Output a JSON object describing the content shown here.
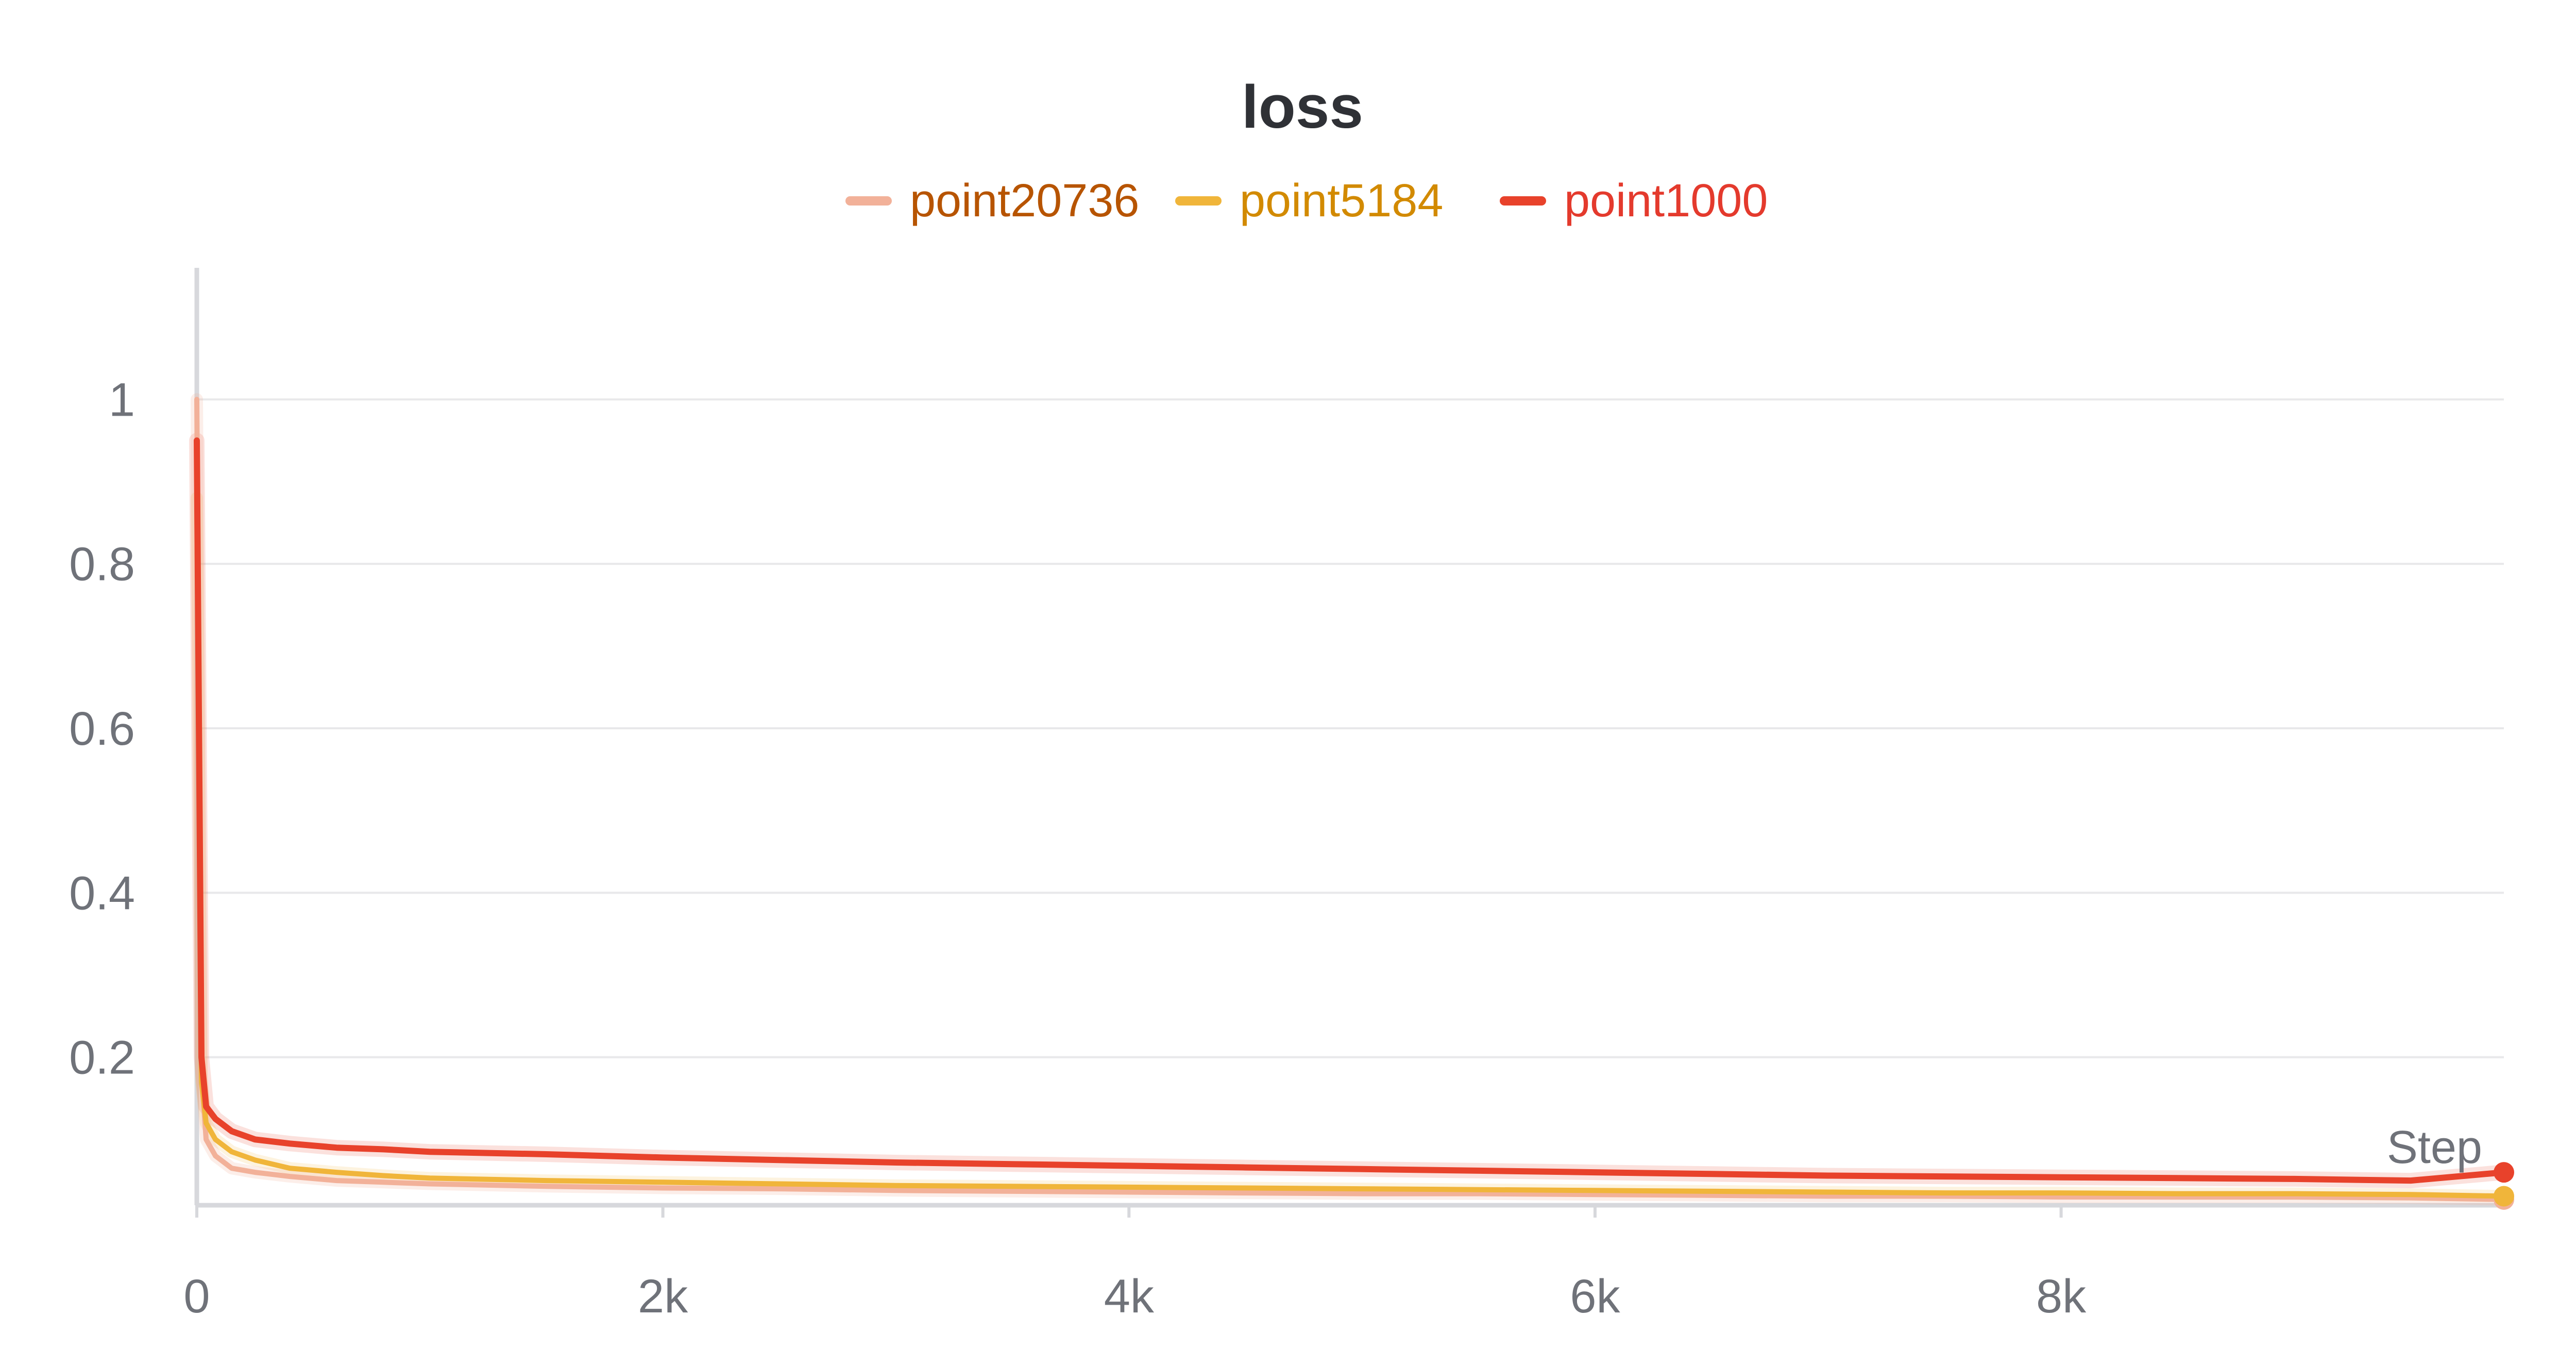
{
  "chart_data": {
    "type": "line",
    "title": "loss",
    "xlabel": "Step",
    "ylabel": "",
    "xlim": [
      0,
      9900
    ],
    "ylim": [
      0.02,
      1.16
    ],
    "x_ticks": [
      {
        "value": 0,
        "label": "0"
      },
      {
        "value": 2000,
        "label": "2k"
      },
      {
        "value": 4000,
        "label": "4k"
      },
      {
        "value": 6000,
        "label": "6k"
      },
      {
        "value": 8000,
        "label": "8k"
      }
    ],
    "y_ticks": [
      {
        "value": 1.0,
        "label": "1"
      },
      {
        "value": 0.8,
        "label": "0.8"
      },
      {
        "value": 0.6,
        "label": "0.6"
      },
      {
        "value": 0.4,
        "label": "0.4"
      },
      {
        "value": 0.2,
        "label": "0.2"
      }
    ],
    "grid": true,
    "legend_placement": "top-center",
    "x": [
      0,
      20,
      40,
      80,
      150,
      250,
      400,
      600,
      800,
      1000,
      1500,
      2000,
      2500,
      3000,
      3500,
      4000,
      4500,
      5000,
      5500,
      6000,
      6500,
      7000,
      7500,
      8000,
      8500,
      9000,
      9500,
      9900
    ],
    "series": [
      {
        "name": "point20736",
        "color": "#f2b199",
        "legend_text_color": "#b75400",
        "values": [
          1.0,
          0.18,
          0.1,
          0.08,
          0.065,
          0.06,
          0.055,
          0.05,
          0.048,
          0.046,
          0.043,
          0.041,
          0.04,
          0.038,
          0.037,
          0.036,
          0.035,
          0.034,
          0.034,
          0.033,
          0.032,
          0.031,
          0.031,
          0.03,
          0.03,
          0.03,
          0.029,
          0.027
        ]
      },
      {
        "name": "point5184",
        "color": "#f0b53a",
        "legend_text_color": "#d28a00",
        "values": [
          0.88,
          0.17,
          0.12,
          0.1,
          0.085,
          0.075,
          0.065,
          0.06,
          0.056,
          0.053,
          0.05,
          0.048,
          0.046,
          0.044,
          0.043,
          0.042,
          0.041,
          0.04,
          0.039,
          0.038,
          0.037,
          0.036,
          0.035,
          0.035,
          0.034,
          0.034,
          0.033,
          0.031
        ]
      },
      {
        "name": "point1000",
        "color": "#e8422b",
        "legend_text_color": "#e43a2d",
        "values": [
          0.95,
          0.2,
          0.14,
          0.125,
          0.11,
          0.1,
          0.095,
          0.09,
          0.088,
          0.085,
          0.082,
          0.078,
          0.075,
          0.072,
          0.07,
          0.068,
          0.066,
          0.064,
          0.062,
          0.06,
          0.058,
          0.056,
          0.055,
          0.054,
          0.053,
          0.052,
          0.05,
          0.06
        ]
      }
    ]
  }
}
